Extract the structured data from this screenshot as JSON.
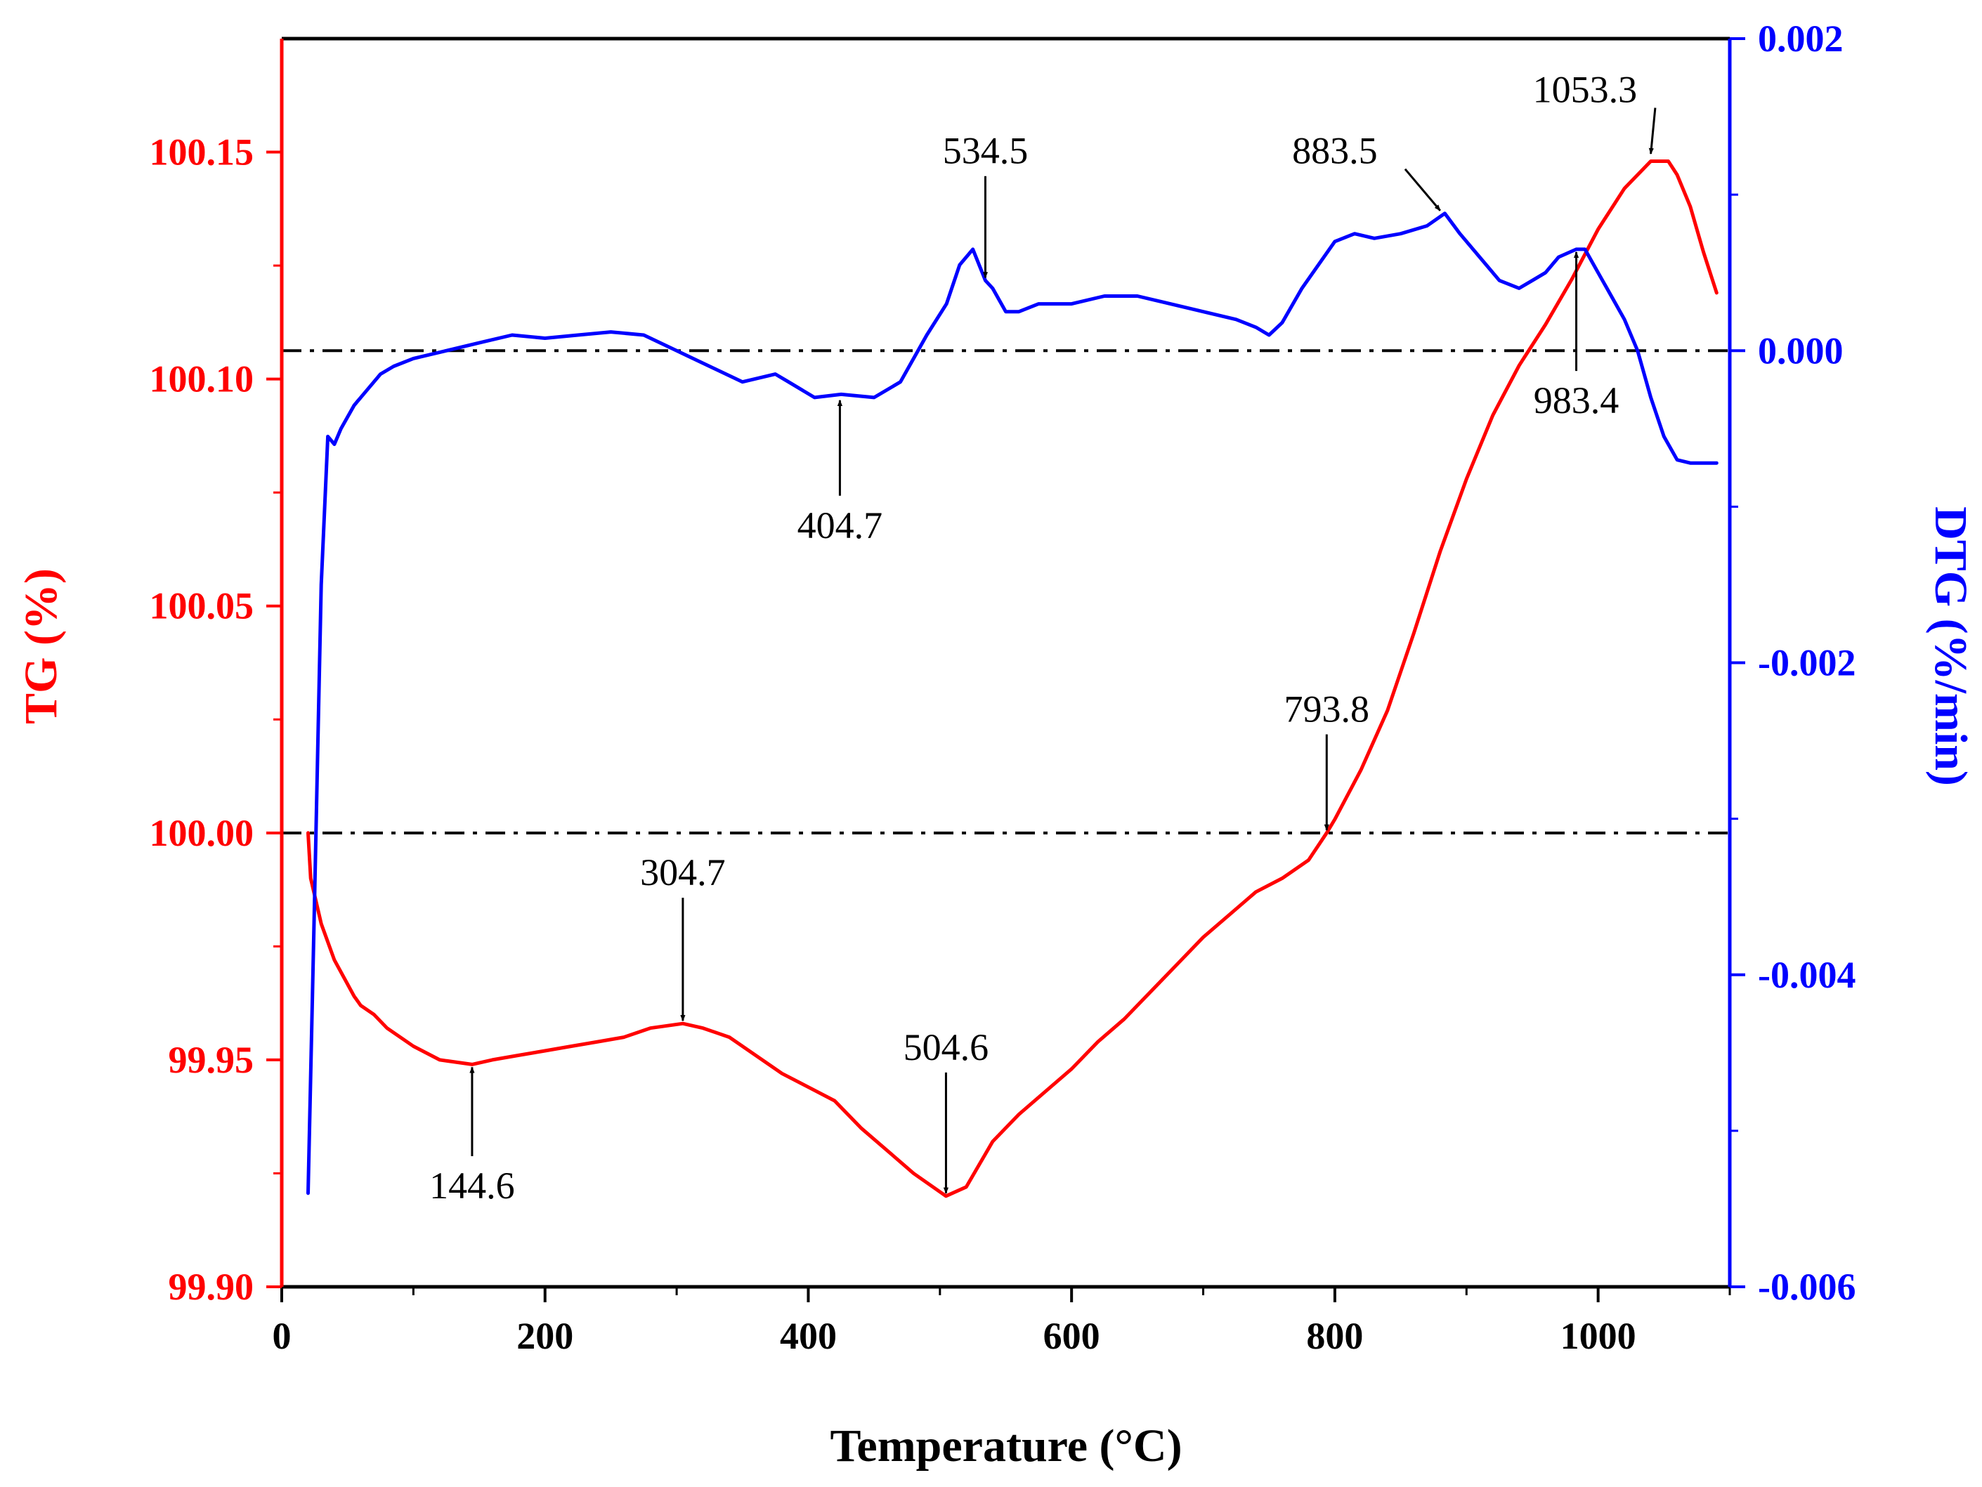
{
  "chart_data": {
    "type": "line",
    "xlabel": "Temperature (°C)",
    "ylabel_left": "TG (%)",
    "ylabel_right": "DTG (%/min)",
    "xlim": [
      0,
      1100
    ],
    "ylim_left": [
      99.9,
      100.175
    ],
    "ylim_right": [
      -0.006,
      0.002
    ],
    "x_ticks": [
      0,
      200,
      400,
      600,
      800,
      1000
    ],
    "x_tick_labels": [
      "0",
      "200",
      "400",
      "600",
      "800",
      "1000"
    ],
    "y_left_ticks": [
      99.9,
      99.95,
      100.0,
      100.05,
      100.1,
      100.15
    ],
    "y_left_tick_labels": [
      "99.90",
      "99.95",
      "100.00",
      "100.05",
      "100.10",
      "100.15"
    ],
    "y_right_ticks": [
      -0.006,
      -0.004,
      -0.002,
      0.0,
      0.002
    ],
    "y_right_tick_labels": [
      "-0.006",
      "-0.004",
      "-0.002",
      "0.000",
      "0.002"
    ],
    "colors": {
      "tg": "#ff0000",
      "dtg": "#0000ff",
      "reference": "#000000"
    },
    "reference_lines": [
      {
        "name": "TG 100.00 baseline",
        "axis": "left",
        "value": 100.0
      },
      {
        "name": "DTG zero baseline",
        "axis": "right",
        "value": 0.0
      }
    ],
    "series": [
      {
        "name": "TG",
        "axis": "left",
        "color": "#ff0000",
        "x": [
          20,
          22,
          30,
          40,
          55,
          60,
          70,
          80,
          100,
          120,
          144.6,
          160,
          180,
          200,
          220,
          240,
          260,
          280,
          304.7,
          320,
          340,
          360,
          380,
          400,
          420,
          440,
          460,
          480,
          504.6,
          520,
          540,
          560,
          580,
          600,
          620,
          640,
          660,
          680,
          700,
          720,
          740,
          760,
          780,
          793.8,
          800,
          820,
          840,
          860,
          880,
          900,
          920,
          940,
          960,
          980,
          1000,
          1020,
          1040,
          1053.3,
          1060,
          1070,
          1080,
          1090
        ],
        "y": [
          100.0,
          99.99,
          99.98,
          99.972,
          99.964,
          99.962,
          99.96,
          99.957,
          99.953,
          99.95,
          99.949,
          99.95,
          99.951,
          99.952,
          99.953,
          99.954,
          99.955,
          99.957,
          99.958,
          99.957,
          99.955,
          99.951,
          99.947,
          99.944,
          99.941,
          99.935,
          99.93,
          99.925,
          99.92,
          99.922,
          99.932,
          99.938,
          99.943,
          99.948,
          99.954,
          99.959,
          99.965,
          99.971,
          99.977,
          99.982,
          99.987,
          99.99,
          99.994,
          100.0,
          100.003,
          100.014,
          100.027,
          100.044,
          100.062,
          100.078,
          100.092,
          100.103,
          100.112,
          100.122,
          100.133,
          100.142,
          100.148,
          100.148,
          100.145,
          100.138,
          100.128,
          100.119
        ]
      },
      {
        "name": "DTG",
        "axis": "right",
        "color": "#0000ff",
        "x": [
          20,
          25,
          30,
          35,
          40,
          45,
          55,
          65,
          75,
          85,
          100,
          125,
          150,
          175,
          200,
          225,
          250,
          275,
          300,
          325,
          350,
          375,
          385,
          404.7,
          425,
          450,
          470,
          490,
          505,
          515,
          525,
          534.5,
          540,
          550,
          560,
          575,
          600,
          625,
          650,
          675,
          700,
          725,
          740,
          750,
          760,
          775,
          800,
          815,
          830,
          850,
          870,
          883.5,
          895,
          910,
          925,
          940,
          950,
          960,
          970,
          983.4,
          990,
          1000,
          1010,
          1020,
          1030,
          1040,
          1050,
          1060,
          1070,
          1080,
          1090
        ],
        "y": [
          -0.0054,
          -0.0035,
          -0.0015,
          -0.00055,
          -0.0006,
          -0.0005,
          -0.00035,
          -0.00025,
          -0.00015,
          -0.0001,
          -5e-05,
          0.0,
          5e-05,
          0.0001,
          8e-05,
          0.0001,
          0.00012,
          0.0001,
          0.0,
          -0.0001,
          -0.0002,
          -0.00015,
          -0.0002,
          -0.0003,
          -0.00028,
          -0.0003,
          -0.0002,
          0.0001,
          0.0003,
          0.00055,
          0.00065,
          0.00045,
          0.0004,
          0.00025,
          0.00025,
          0.0003,
          0.0003,
          0.00035,
          0.00035,
          0.0003,
          0.00025,
          0.0002,
          0.00015,
          0.0001,
          0.00018,
          0.0004,
          0.0007,
          0.00075,
          0.00072,
          0.00075,
          0.0008,
          0.00088,
          0.00075,
          0.0006,
          0.00045,
          0.0004,
          0.00045,
          0.0005,
          0.0006,
          0.00065,
          0.00065,
          0.0005,
          0.00035,
          0.0002,
          0.0,
          -0.0003,
          -0.00055,
          -0.0007,
          -0.00072,
          -0.00072,
          -0.00072
        ]
      }
    ],
    "annotations": [
      {
        "label": "144.6",
        "axis": "left",
        "x": 144.6,
        "y": 99.949,
        "text_x": 144.6,
        "text_y": 99.9195,
        "direction": "up"
      },
      {
        "label": "304.7",
        "axis": "left",
        "x": 304.7,
        "y": 99.958,
        "text_x": 304.7,
        "text_y": 99.9885,
        "direction": "down"
      },
      {
        "label": "504.6",
        "axis": "left",
        "x": 504.6,
        "y": 99.92,
        "text_x": 504.6,
        "text_y": 99.95,
        "direction": "down"
      },
      {
        "label": "793.8",
        "axis": "left",
        "x": 793.8,
        "y": 100.0,
        "text_x": 793.8,
        "text_y": 100.0245,
        "direction": "down"
      },
      {
        "label": "1053.3",
        "axis": "left",
        "x": 1040,
        "y": 100.149,
        "text_x": 990,
        "text_y": 100.161,
        "direction": "diagonal"
      },
      {
        "label": "534.5",
        "axis": "right",
        "x": 534.5,
        "y": 0.00045,
        "text_x": 534.5,
        "text_y": 0.0012,
        "direction": "down"
      },
      {
        "label": "404.7",
        "axis": "right",
        "x": 424,
        "y": -0.0003,
        "text_x": 424,
        "text_y": -0.0012,
        "direction": "up"
      },
      {
        "label": "883.5",
        "axis": "right",
        "x": 880,
        "y": 0.00088,
        "text_x": 800,
        "text_y": 0.0012,
        "direction": "diagonal"
      },
      {
        "label": "983.4",
        "axis": "right",
        "x": 983.4,
        "y": 0.00065,
        "text_x": 983.4,
        "text_y": -0.0004,
        "direction": "up"
      }
    ]
  }
}
